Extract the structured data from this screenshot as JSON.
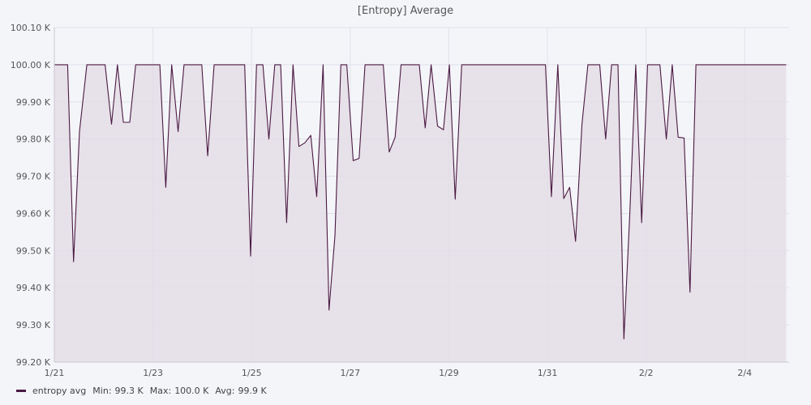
{
  "title": "[Entropy] Average",
  "colors": {
    "line": "#4a1942",
    "fill": "#e4dde6",
    "grid": "#e1e1ea",
    "background": "#f4f5f9"
  },
  "legend": {
    "series_name": "entropy avg",
    "min_label": "Min:",
    "min_value": "99.3 K",
    "max_label": "Max:",
    "max_value": "100.0 K",
    "avg_label": "Avg:",
    "avg_value": "99.9 K"
  },
  "chart_data": {
    "type": "area",
    "title": "[Entropy] Average",
    "xlabel": "",
    "ylabel": "",
    "x_range": [
      "1/21",
      "2/4+0.9"
    ],
    "ylim": [
      99200,
      100100
    ],
    "y_ticks": [
      "99.20 K",
      "99.30 K",
      "99.40 K",
      "99.50 K",
      "99.60 K",
      "99.70 K",
      "99.80 K",
      "99.90 K",
      "100.00 K",
      "100.10 K"
    ],
    "y_tick_values": [
      99200,
      99300,
      99400,
      99500,
      99600,
      99700,
      99800,
      99900,
      100000,
      100100
    ],
    "x_ticks": [
      "1/21",
      "1/23",
      "1/25",
      "1/27",
      "1/29",
      "1/31",
      "2/2",
      "2/4"
    ],
    "x_tick_days": [
      0,
      2,
      4,
      6,
      8,
      10,
      12,
      14
    ],
    "grid": true,
    "legend_position": "bottom-left",
    "series": [
      {
        "name": "entropy avg",
        "x_days": [
          0,
          0.27,
          0.39,
          0.51,
          0.66,
          1.03,
          1.16,
          1.28,
          1.4,
          1.53,
          1.65,
          1.77,
          1.89,
          2.01,
          2.14,
          2.26,
          2.38,
          2.51,
          2.63,
          2.75,
          2.87,
          2.99,
          3.11,
          3.24,
          3.36,
          3.48,
          3.6,
          3.72,
          3.86,
          3.98,
          4.1,
          4.23,
          4.35,
          4.47,
          4.59,
          4.71,
          4.84,
          4.96,
          5.08,
          5.2,
          5.32,
          5.45,
          5.57,
          5.69,
          5.81,
          5.93,
          6.06,
          6.18,
          6.3,
          6.42,
          6.55,
          6.67,
          6.79,
          6.91,
          7.03,
          7.16,
          7.28,
          7.4,
          7.52,
          7.64,
          7.77,
          7.89,
          8.01,
          8.13,
          8.26,
          8.38,
          8.5,
          8.62,
          8.75,
          8.87,
          8.99,
          9.11,
          9.23,
          9.36,
          9.48,
          9.6,
          9.72,
          9.84,
          9.96,
          10.08,
          10.21,
          10.33,
          10.45,
          10.57,
          10.7,
          10.82,
          10.94,
          11.06,
          11.18,
          11.3,
          11.43,
          11.55,
          11.67,
          11.79,
          11.91,
          12.03,
          12.16,
          12.28,
          12.41,
          12.53,
          12.65,
          12.77,
          12.89,
          13.01,
          13.14,
          13.26,
          13.38,
          13.5,
          13.62,
          13.74,
          13.87,
          13.99,
          14.11,
          14.23,
          14.35,
          14.47,
          14.6,
          14.72,
          14.84
        ],
        "values": [
          100000,
          100000,
          99470,
          99820,
          100000,
          100000,
          99840,
          100000,
          99845,
          99845,
          100000,
          100000,
          100000,
          100000,
          100000,
          99670,
          100000,
          99820,
          100000,
          100000,
          100000,
          100000,
          99755,
          100000,
          100000,
          100000,
          100000,
          100000,
          100000,
          99485,
          100000,
          100000,
          99800,
          100000,
          100000,
          99575,
          100000,
          99780,
          99790,
          99810,
          99645,
          100000,
          99340,
          99540,
          100000,
          100000,
          99742,
          99748,
          100000,
          100000,
          100000,
          100000,
          99765,
          99805,
          100000,
          100000,
          100000,
          100000,
          99830,
          100000,
          99835,
          99825,
          100000,
          99638,
          100000,
          100000,
          100000,
          100000,
          100000,
          100000,
          100000,
          100000,
          100000,
          100000,
          100000,
          100000,
          100000,
          100000,
          100000,
          99645,
          100000,
          99640,
          99670,
          99525,
          99840,
          100000,
          100000,
          100000,
          99800,
          100000,
          100000,
          99262,
          99600,
          100000,
          99575,
          100000,
          100000,
          100000,
          99800,
          100000,
          99805,
          99803,
          99388,
          100000,
          100000,
          100000,
          100000,
          100000,
          100000,
          100000,
          100000,
          100000,
          100000,
          100000,
          100000,
          100000,
          100000,
          100000,
          100000
        ]
      }
    ]
  }
}
